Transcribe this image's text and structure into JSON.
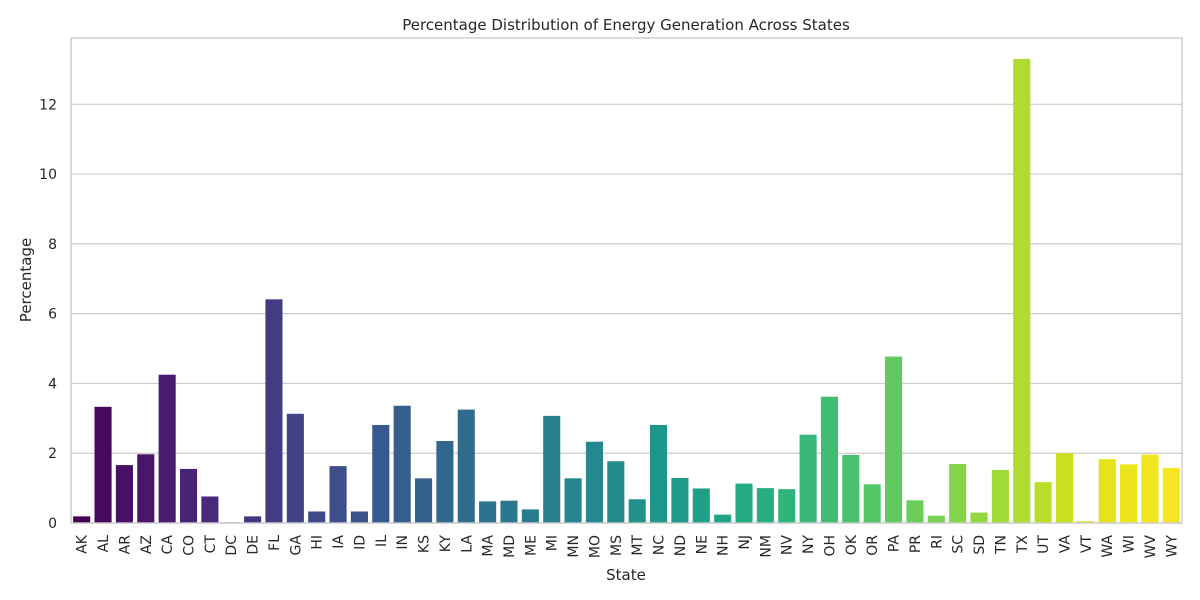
{
  "chart_data": {
    "type": "bar",
    "title": "Percentage Distribution of Energy Generation Across States",
    "xlabel": "State",
    "ylabel": "Percentage",
    "ylim": [
      0,
      13.9
    ],
    "yticks": [
      0,
      2,
      4,
      6,
      8,
      10,
      12
    ],
    "grid": "horizontal",
    "palette": "viridis",
    "categories": [
      "AK",
      "AL",
      "AR",
      "AZ",
      "CA",
      "CO",
      "CT",
      "DC",
      "DE",
      "FL",
      "GA",
      "HI",
      "IA",
      "ID",
      "IL",
      "IN",
      "KS",
      "KY",
      "LA",
      "MA",
      "MD",
      "ME",
      "MI",
      "MN",
      "MO",
      "MS",
      "MT",
      "NC",
      "ND",
      "NE",
      "NH",
      "NJ",
      "NM",
      "NV",
      "NY",
      "OH",
      "OK",
      "OR",
      "PA",
      "PR",
      "RI",
      "SC",
      "SD",
      "TN",
      "TX",
      "UT",
      "VA",
      "VT",
      "WA",
      "WI",
      "WV",
      "WY"
    ],
    "values": [
      0.19,
      3.33,
      1.66,
      1.97,
      4.25,
      1.55,
      0.76,
      0.02,
      0.19,
      6.41,
      3.13,
      0.33,
      1.63,
      0.33,
      2.81,
      3.36,
      1.28,
      2.35,
      3.25,
      0.62,
      0.64,
      0.39,
      3.07,
      1.28,
      2.33,
      1.77,
      0.68,
      2.81,
      1.29,
      0.99,
      0.24,
      1.13,
      1.0,
      0.97,
      2.53,
      3.62,
      1.95,
      1.11,
      4.77,
      0.65,
      0.21,
      1.69,
      0.3,
      1.52,
      13.3,
      1.17,
      2.0,
      0.05,
      1.83,
      1.68,
      1.96,
      1.58
    ],
    "colors": [
      "#440154",
      "#450a5c",
      "#471063",
      "#481769",
      "#481d6f",
      "#482475",
      "#472a7a",
      "#46307e",
      "#453581",
      "#433c84",
      "#414287",
      "#3f4889",
      "#3d4e8a",
      "#3a538b",
      "#38598c",
      "#365e8d",
      "#34628d",
      "#32678d",
      "#306c8e",
      "#2e718e",
      "#2c768e",
      "#2a7b8e",
      "#287f8e",
      "#26848e",
      "#25888e",
      "#238d8d",
      "#21918c",
      "#1f968b",
      "#1f9a8a",
      "#1fa088",
      "#21a486",
      "#24aa83",
      "#29ae80",
      "#2fb47c",
      "#37b878",
      "#40bd72",
      "#4ac16d",
      "#55c667",
      "#60ca60",
      "#6ccd5a",
      "#78d152",
      "#85d54a",
      "#93d741",
      "#a0da39",
      "#aedc30",
      "#bade28",
      "#c9e020",
      "#d7e219",
      "#e5e419",
      "#ece51b",
      "#f1e51d",
      "#f6e620"
    ]
  }
}
